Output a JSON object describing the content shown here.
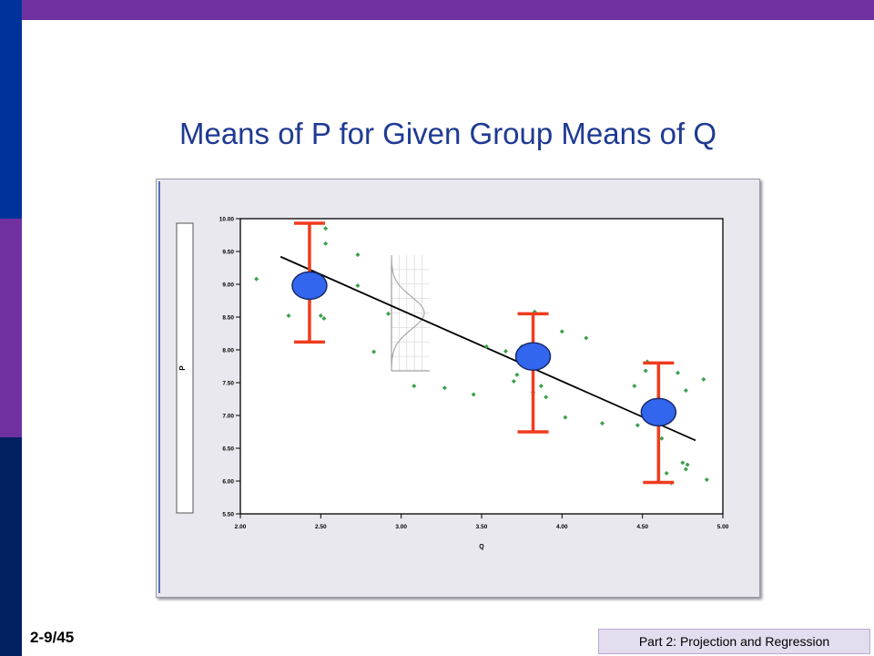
{
  "slide": {
    "title": "Means of P for Given Group Means of Q",
    "page_number": "2-9/45",
    "footer": "Part 2: Projection and Regression"
  },
  "colors": {
    "title": "#1f3a93",
    "points": "#3aa14a",
    "error_bars": "#f03c1e",
    "group_means": "#3366ee",
    "fit_line": "#000000",
    "density_curve": "#aaaaaa"
  },
  "chart_data": {
    "type": "scatter",
    "xlabel": "Q",
    "ylabel": "P",
    "xlim": [
      2.0,
      5.0
    ],
    "ylim": [
      5.5,
      10.0
    ],
    "x_ticks": [
      "2.00",
      "2.50",
      "3.00",
      "3.50",
      "4.00",
      "4.50",
      "5.00"
    ],
    "y_ticks": [
      "5.50",
      "6.00",
      "6.50",
      "7.00",
      "7.50",
      "8.00",
      "8.50",
      "9.00",
      "9.50",
      "10.00"
    ],
    "points": [
      [
        2.1,
        9.08
      ],
      [
        2.3,
        8.52
      ],
      [
        2.4,
        8.98
      ],
      [
        2.52,
        8.48
      ],
      [
        2.5,
        8.52
      ],
      [
        2.53,
        9.85
      ],
      [
        2.53,
        9.62
      ],
      [
        2.73,
        9.45
      ],
      [
        2.73,
        8.98
      ],
      [
        2.83,
        7.97
      ],
      [
        2.92,
        8.55
      ],
      [
        3.08,
        7.45
      ],
      [
        3.27,
        7.42
      ],
      [
        3.45,
        7.32
      ],
      [
        3.53,
        8.05
      ],
      [
        3.65,
        7.98
      ],
      [
        3.72,
        7.62
      ],
      [
        3.7,
        7.52
      ],
      [
        3.75,
        8.05
      ],
      [
        3.83,
        8.58
      ],
      [
        3.82,
        7.35
      ],
      [
        3.87,
        7.45
      ],
      [
        3.9,
        7.28
      ],
      [
        4.0,
        8.28
      ],
      [
        4.02,
        6.97
      ],
      [
        4.15,
        8.18
      ],
      [
        4.25,
        6.88
      ],
      [
        4.45,
        7.45
      ],
      [
        4.47,
        6.85
      ],
      [
        4.52,
        7.68
      ],
      [
        4.53,
        7.82
      ],
      [
        4.55,
        6.97
      ],
      [
        4.6,
        7.02
      ],
      [
        4.62,
        6.65
      ],
      [
        4.65,
        6.12
      ],
      [
        4.68,
        5.97
      ],
      [
        4.7,
        7.05
      ],
      [
        4.72,
        7.65
      ],
      [
        4.75,
        6.28
      ],
      [
        4.77,
        7.38
      ],
      [
        4.77,
        6.18
      ],
      [
        4.78,
        6.25
      ],
      [
        4.88,
        7.55
      ],
      [
        4.9,
        6.02
      ]
    ],
    "group_means": [
      {
        "x": 2.43,
        "y": 8.98,
        "y_low": 8.12,
        "y_high": 9.93
      },
      {
        "x": 3.82,
        "y": 7.9,
        "y_low": 6.75,
        "y_high": 8.55
      },
      {
        "x": 4.6,
        "y": 7.05,
        "y_low": 5.98,
        "y_high": 7.8
      }
    ],
    "fit_line": [
      [
        2.25,
        9.42
      ],
      [
        4.83,
        6.62
      ]
    ],
    "legend": "none"
  }
}
